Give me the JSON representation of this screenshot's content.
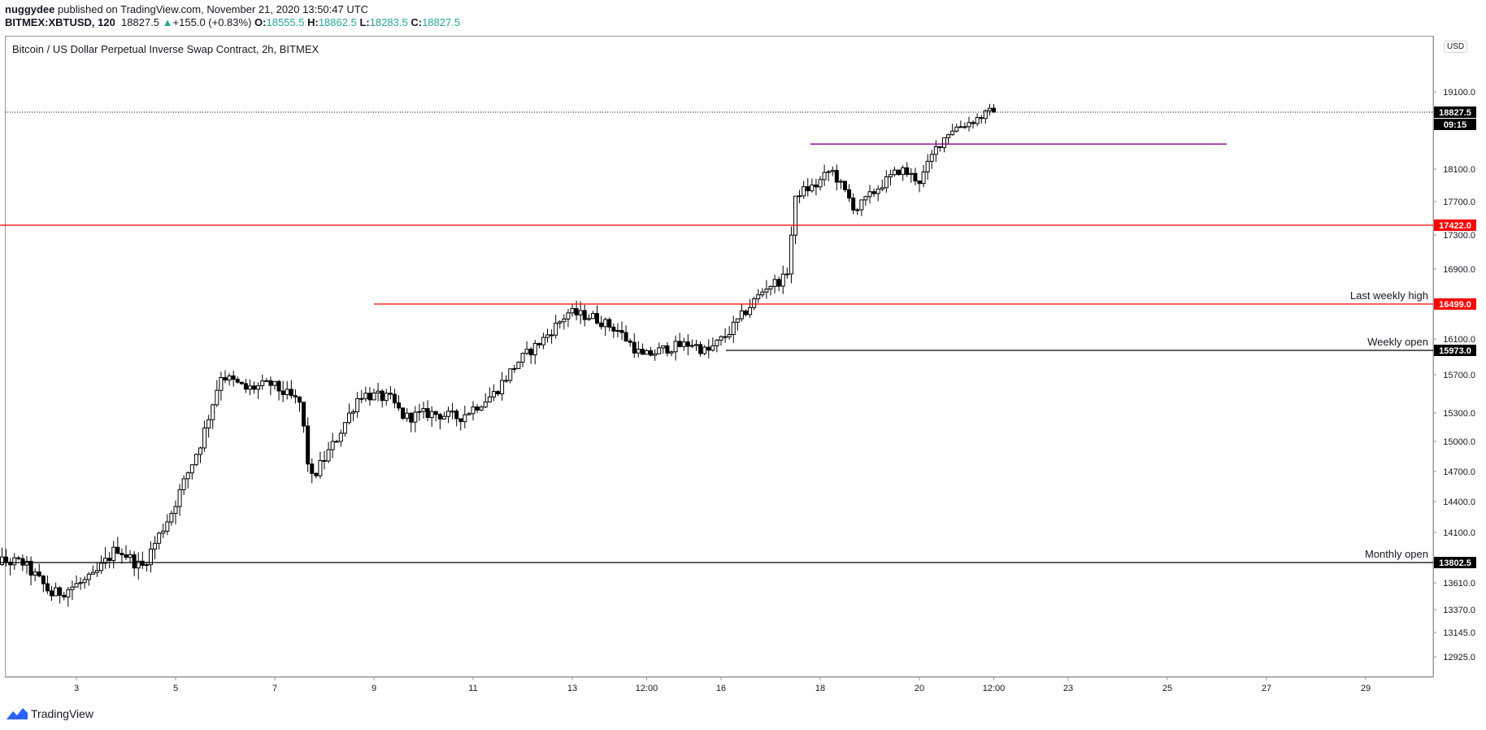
{
  "header": {
    "publisher": "nuggydee",
    "published_text": " published on TradingView.com, November 21, 2020 13:50:47 UTC",
    "symbol": "BITMEX:XBTUSD, 120",
    "last": "18827.5",
    "change_arrow": "▲",
    "change": "+155.0 (+0.83%)",
    "o_label": "O:",
    "o_value": "18555.5",
    "h_label": "H:",
    "h_value": "18862.5",
    "l_label": "L:",
    "l_value": "18283.5",
    "c_label": "C:",
    "c_value": "18827.5"
  },
  "chart_title": "Bitcoin / US Dollar Perpetual Inverse Swap Contract, 2h, BITMEX",
  "currency_badge": "USD",
  "footer": {
    "brand": "TradingView"
  },
  "colors": {
    "up": "#ffffff",
    "down": "#000000",
    "red_level": "#ff0000",
    "black_level": "#000000",
    "purple_level": "#800080"
  },
  "chart_data": {
    "type": "candlestick",
    "title": "Bitcoin / US Dollar Perpetual Inverse Swap Contract, 2h, BITMEX",
    "x_ticks": [
      "3",
      "5",
      "7",
      "9",
      "11",
      "13",
      "12:00",
      "16",
      "18",
      "20",
      "12:00",
      "23",
      "25",
      "27",
      "29"
    ],
    "y_ticks": [
      "19100.0",
      "18100.0",
      "17700.0",
      "17300.0",
      "16900.0",
      "16100.0",
      "15700.0",
      "15300.0",
      "15000.0",
      "14700.0",
      "14400.0",
      "14100.0",
      "13610.0",
      "13370.0",
      "13145.0",
      "12925.0"
    ],
    "last_price": "18827.5",
    "countdown": "09:15",
    "levels": [
      {
        "label": "",
        "value": "17422.0",
        "color": "#ff0000",
        "start_day": 1
      },
      {
        "label": "Last weekly high",
        "value": "16499.0",
        "color": "#ff0000",
        "start_day": 9
      },
      {
        "label": "Weekly open",
        "value": "15973.0",
        "color": "#000000",
        "start_day": 16.1
      },
      {
        "label": "Monthly open",
        "value": "13802.5",
        "color": "#000000",
        "start_day": 1
      }
    ],
    "trendline": {
      "from_day": 17.8,
      "to_day": 26.2,
      "value": 18420
    },
    "price_path": [
      [
        1.0,
        13830
      ],
      [
        2.0,
        13800
      ],
      [
        2.6,
        13500
      ],
      [
        3.4,
        13650
      ],
      [
        3.9,
        13950
      ],
      [
        4.4,
        13750
      ],
      [
        5.0,
        14300
      ],
      [
        5.6,
        15000
      ],
      [
        6.0,
        15700
      ],
      [
        6.5,
        15550
      ],
      [
        7.0,
        15600
      ],
      [
        7.6,
        15400
      ],
      [
        7.8,
        14600
      ],
      [
        8.3,
        15000
      ],
      [
        8.8,
        15500
      ],
      [
        9.4,
        15450
      ],
      [
        9.7,
        15250
      ],
      [
        10.2,
        15300
      ],
      [
        10.8,
        15250
      ],
      [
        11.5,
        15500
      ],
      [
        12.0,
        15850
      ],
      [
        12.5,
        16100
      ],
      [
        13.0,
        16400
      ],
      [
        13.5,
        16350
      ],
      [
        14.0,
        16200
      ],
      [
        14.5,
        15900
      ],
      [
        15.0,
        16000
      ],
      [
        15.5,
        16050
      ],
      [
        15.8,
        15950
      ],
      [
        16.2,
        16150
      ],
      [
        16.7,
        16500
      ],
      [
        17.0,
        16700
      ],
      [
        17.4,
        16800
      ],
      [
        17.6,
        17800
      ],
      [
        18.0,
        17900
      ],
      [
        18.3,
        18100
      ],
      [
        18.8,
        17600
      ],
      [
        19.3,
        17900
      ],
      [
        19.7,
        18100
      ],
      [
        20.1,
        17950
      ],
      [
        20.4,
        18350
      ],
      [
        20.7,
        18600
      ],
      [
        21.1,
        18700
      ],
      [
        21.5,
        18827.5
      ]
    ]
  }
}
